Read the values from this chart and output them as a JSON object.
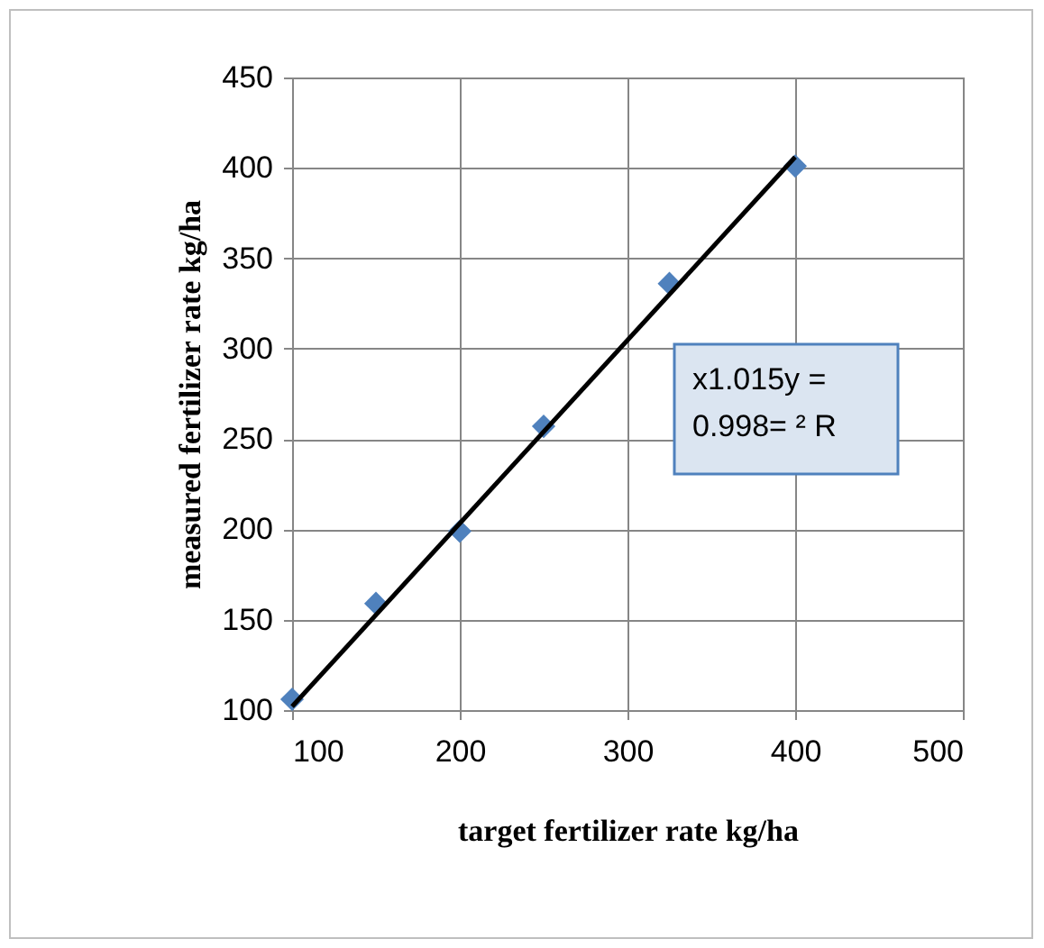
{
  "chart_data": {
    "type": "scatter",
    "xlabel": "target fertilizer rate kg/ha",
    "ylabel": "measured fertilizer rate kg/ha",
    "x": [
      100,
      150,
      200,
      250,
      325,
      400
    ],
    "series": [
      {
        "color": "#4f81bd",
        "marker": "diamond",
        "values": [
          106,
          159,
          199,
          257,
          336,
          401
        ]
      },
      {
        "type": "line",
        "color": "#000000",
        "x": [
          100,
          400
        ],
        "values": [
          102,
          406
        ]
      }
    ],
    "xlim": [
      100,
      500
    ],
    "xticks": [
      100,
      200,
      300,
      400,
      500
    ],
    "ylim": [
      100,
      450
    ],
    "yticks": [
      100,
      150,
      200,
      250,
      300,
      350,
      400,
      450
    ],
    "grid": true,
    "annotations": [
      "x1.015y =\n0.998= ² R"
    ]
  }
}
